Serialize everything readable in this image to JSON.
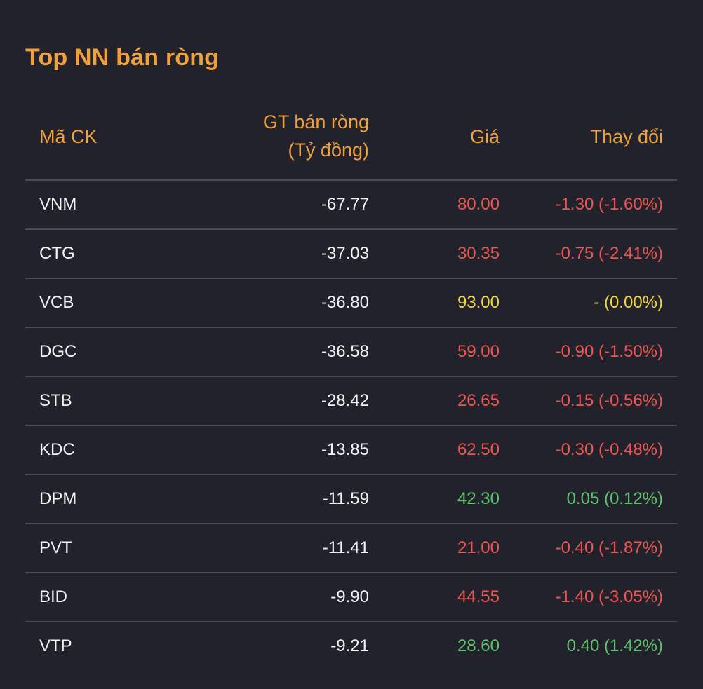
{
  "title": "Top NN bán ròng",
  "colors": {
    "background": "#21222b",
    "accent": "#f0a13e",
    "down": "#ee5651",
    "reference": "#f1d544",
    "up": "#5ec46a"
  },
  "columns": {
    "code": "Mã CK",
    "value_line1": "GT bán ròng",
    "value_line2": "(Tỷ đồng)",
    "price": "Giá",
    "change": "Thay đổi"
  },
  "rows": [
    {
      "code": "VNM",
      "value": "-67.77",
      "price": "80.00",
      "change": "-1.30 (-1.60%)",
      "trend": "down"
    },
    {
      "code": "CTG",
      "value": "-37.03",
      "price": "30.35",
      "change": "-0.75 (-2.41%)",
      "trend": "down"
    },
    {
      "code": "VCB",
      "value": "-36.80",
      "price": "93.00",
      "change": "- (0.00%)",
      "trend": "ref"
    },
    {
      "code": "DGC",
      "value": "-36.58",
      "price": "59.00",
      "change": "-0.90 (-1.50%)",
      "trend": "down"
    },
    {
      "code": "STB",
      "value": "-28.42",
      "price": "26.65",
      "change": "-0.15 (-0.56%)",
      "trend": "down"
    },
    {
      "code": "KDC",
      "value": "-13.85",
      "price": "62.50",
      "change": "-0.30 (-0.48%)",
      "trend": "down"
    },
    {
      "code": "DPM",
      "value": "-11.59",
      "price": "42.30",
      "change": "0.05 (0.12%)",
      "trend": "up"
    },
    {
      "code": "PVT",
      "value": "-11.41",
      "price": "21.00",
      "change": "-0.40 (-1.87%)",
      "trend": "down"
    },
    {
      "code": "BID",
      "value": "-9.90",
      "price": "44.55",
      "change": "-1.40 (-3.05%)",
      "trend": "down"
    },
    {
      "code": "VTP",
      "value": "-9.21",
      "price": "28.60",
      "change": "0.40 (1.42%)",
      "trend": "up"
    }
  ]
}
